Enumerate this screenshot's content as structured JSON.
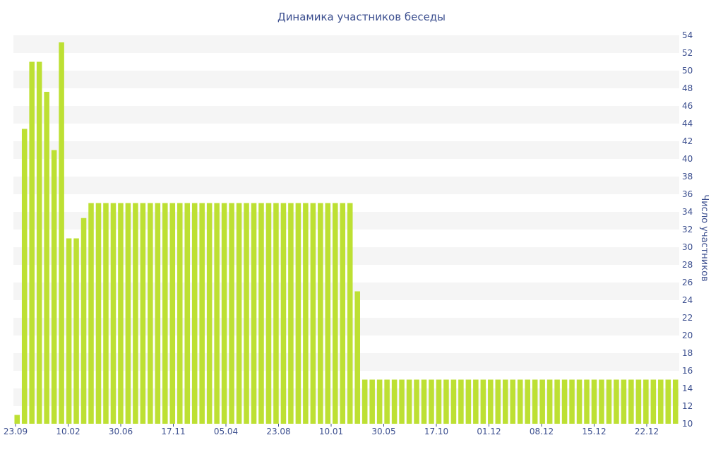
{
  "chart_data": {
    "type": "bar",
    "title": "Динамика участников беседы",
    "xlabel": "",
    "ylabel": "Число участников",
    "ylim": [
      10,
      54
    ],
    "y_ticks": [
      10,
      12,
      14,
      16,
      18,
      20,
      22,
      24,
      26,
      28,
      30,
      32,
      34,
      36,
      38,
      40,
      42,
      44,
      46,
      48,
      50,
      52,
      54
    ],
    "x_tick_labels": [
      "23.09",
      "10.02",
      "30.06",
      "17.11",
      "05.04",
      "23.08",
      "10.01",
      "30.05",
      "17.10",
      "01.12",
      "08.12",
      "15.12",
      "22.12"
    ],
    "grid": "horizontal bands",
    "colors": {
      "bar": "#bde033",
      "band": "#f5f5f5",
      "text": "#3c4f8f"
    },
    "values": [
      11,
      43.4,
      51,
      51,
      47.6,
      41,
      53.2,
      31,
      31,
      33.3,
      35,
      35,
      35,
      35,
      35,
      35,
      35,
      35,
      35,
      35,
      35,
      35,
      35,
      35,
      35,
      35,
      35,
      35,
      35,
      35,
      35,
      35,
      35,
      35,
      35,
      35,
      35,
      35,
      35,
      35,
      35,
      35,
      35,
      35,
      35,
      35,
      25,
      15,
      15,
      15,
      15,
      15,
      15,
      15,
      15,
      15,
      15,
      15,
      15,
      15,
      15,
      15,
      15,
      15,
      15,
      15,
      15,
      15,
      15,
      15,
      15,
      15,
      15,
      15,
      15,
      15,
      15,
      15,
      15,
      15,
      15,
      15,
      15,
      15,
      15,
      15,
      15,
      15,
      15,
      15
    ]
  }
}
